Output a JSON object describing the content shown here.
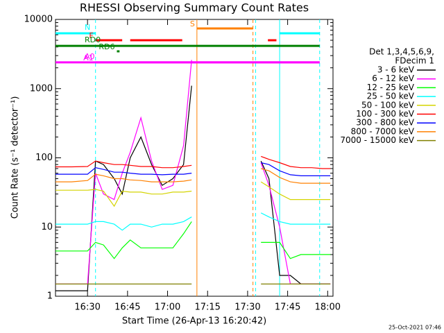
{
  "chart_data": {
    "type": "line",
    "title": "RHESSI Observing Summary Count Rates",
    "x_label": "Start Time (26-Apr-13 16:20:42)",
    "y_label": "Count Rate (s⁻¹ detector⁻¹)",
    "log_y": true,
    "xlim": [
      978,
      1082
    ],
    "ylim": [
      1,
      10000
    ],
    "xticks": [
      {
        "value": 990,
        "label": "16:30"
      },
      {
        "value": 1005,
        "label": "16:45"
      },
      {
        "value": 1020,
        "label": "17:00"
      },
      {
        "value": 1035,
        "label": "17:15"
      },
      {
        "value": 1050,
        "label": "17:30"
      },
      {
        "value": 1065,
        "label": "17:45"
      },
      {
        "value": 1080,
        "label": "18:00"
      }
    ],
    "yticks": [
      1,
      10,
      100,
      1000,
      10000
    ],
    "legend_title": [
      "Det 1,3,4,5,6,9,",
      "FDecim 1"
    ],
    "legend_position": "right",
    "footer": "25-Oct-2021 07:46",
    "x": [
      978,
      984,
      990,
      993,
      996,
      1000,
      1003,
      1006,
      1010,
      1014,
      1018,
      1022,
      1026,
      1029,
      1042,
      1055,
      1058,
      1062,
      1066,
      1070,
      1074,
      1078,
      1081
    ],
    "series": [
      {
        "name": "3 - 6 keV",
        "color": "#000000",
        "values": [
          1.2,
          1.2,
          1.2,
          90,
          80,
          50,
          30,
          100,
          200,
          80,
          40,
          50,
          80,
          1100,
          null,
          90,
          50,
          2,
          2,
          1.5,
          1.5,
          1.5,
          1.5
        ]
      },
      {
        "name": "6 - 12 keV",
        "color": "#ff00ff",
        "values": [
          1.5,
          1.5,
          1.5,
          60,
          30,
          25,
          60,
          120,
          380,
          90,
          35,
          40,
          150,
          2600,
          null,
          85,
          40,
          10,
          1.5,
          1.5,
          1.5,
          1.5,
          1.5
        ]
      },
      {
        "name": "12 - 25 keV",
        "color": "#00ff00",
        "values": [
          4.5,
          4.5,
          4.5,
          6,
          5.5,
          3.5,
          5,
          6.5,
          5,
          5,
          5,
          5,
          8,
          12,
          null,
          6,
          6,
          6,
          3.5,
          4,
          4,
          4,
          4
        ]
      },
      {
        "name": "25 - 50 keV",
        "color": "#00ffff",
        "values": [
          11,
          11,
          11,
          12,
          12,
          11,
          9,
          11,
          11,
          10,
          11,
          11,
          12,
          14,
          null,
          16,
          14,
          12,
          11,
          11,
          11,
          11,
          11
        ]
      },
      {
        "name": "50 - 100 keV",
        "color": "#d4d400",
        "values": [
          34,
          34,
          34,
          35,
          33,
          20,
          33,
          32,
          32,
          30,
          30,
          32,
          32,
          33,
          null,
          45,
          38,
          30,
          25,
          25,
          25,
          25,
          25
        ]
      },
      {
        "name": "100 - 300 keV",
        "color": "#ff0000",
        "values": [
          74,
          74,
          75,
          90,
          85,
          80,
          80,
          78,
          75,
          75,
          72,
          72,
          75,
          78,
          null,
          105,
          95,
          85,
          75,
          72,
          72,
          70,
          70
        ]
      },
      {
        "name": "300 - 800 keV",
        "color": "#0000ff",
        "values": [
          58,
          58,
          58,
          72,
          68,
          62,
          62,
          60,
          58,
          58,
          57,
          58,
          58,
          60,
          null,
          85,
          80,
          65,
          57,
          55,
          55,
          55,
          55
        ]
      },
      {
        "name": "800 - 7000 keV",
        "color": "#ff8000",
        "values": [
          45,
          45,
          47,
          58,
          55,
          50,
          50,
          48,
          47,
          45,
          45,
          45,
          46,
          48,
          null,
          70,
          65,
          52,
          45,
          43,
          43,
          43,
          43
        ]
      },
      {
        "name": "7000 - 15000 keV",
        "color": "#808000",
        "values": [
          1.5,
          1.5,
          1.5,
          1.5,
          1.5,
          1.5,
          1.5,
          1.5,
          1.5,
          1.5,
          1.5,
          1.5,
          1.5,
          1.5,
          null,
          1.5,
          1.5,
          1.5,
          1.5,
          1.5,
          1.5,
          1.5,
          1.5
        ]
      }
    ],
    "flags": [
      {
        "label": "N",
        "color": "#00ffff",
        "y": 6300,
        "segments": [
          [
            978,
            993
          ],
          [
            1062,
            1077
          ]
        ]
      },
      {
        "label": "S",
        "color": "#ff8000",
        "y": 7400,
        "segments": [
          [
            1031,
            1052
          ]
        ]
      },
      {
        "label": "F",
        "color": "#ff0000",
        "y": 5000,
        "segments": [
          [
            993,
            1003
          ],
          [
            1006,
            1025.5
          ],
          [
            1057.6,
            1060.8
          ]
        ]
      },
      {
        "label": "RD0",
        "color": "#008000",
        "y": 4150,
        "segments": [
          [
            978,
            1077
          ]
        ]
      },
      {
        "label": "RD6",
        "color": "#008000",
        "y": 3460,
        "segments": [
          [
            1001,
            1002
          ]
        ]
      },
      {
        "label": "A0",
        "color": "#ff00ff",
        "y": 2400,
        "segments": [
          [
            978,
            1077
          ]
        ]
      },
      {
        "label": "A1",
        "color": "#ff00ff",
        "y": 2400,
        "segments": [
          [
            993,
            1077
          ]
        ]
      }
    ],
    "vlines": [
      {
        "x": 993,
        "color": "#00ffff",
        "dashed": true
      },
      {
        "x": 1031,
        "color": "#ff8000",
        "dashed": false
      },
      {
        "x": 1052,
        "color": "#ff8000",
        "dashed": true
      },
      {
        "x": 1053,
        "color": "#00ffff",
        "dashed": true
      },
      {
        "x": 1062,
        "color": "#00ffff",
        "dashed": false
      },
      {
        "x": 1077,
        "color": "#00ffff",
        "dashed": true
      }
    ]
  }
}
